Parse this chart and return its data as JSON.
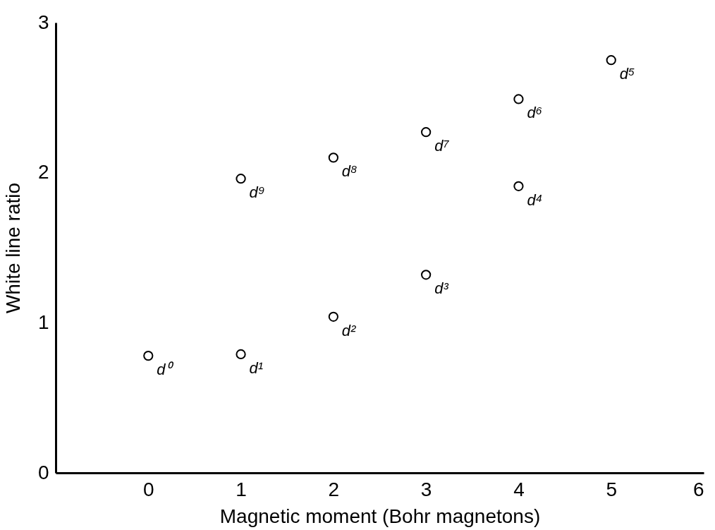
{
  "chart_data": {
    "type": "scatter",
    "xlabel": "Magnetic moment (Bohr magnetons)",
    "ylabel": "White line ratio",
    "x": [
      0,
      1,
      2,
      3,
      4,
      5,
      4,
      3,
      2,
      1
    ],
    "series": [
      {
        "color": "#000000",
        "values": [
          0.78,
          0.79,
          1.04,
          1.32,
          1.91,
          2.75,
          2.49,
          2.27,
          2.1,
          1.96
        ]
      }
    ],
    "marker": "circle",
    "grid": false,
    "xlim": [
      -1,
      6
    ],
    "xticks": [
      0,
      1,
      2,
      3,
      4,
      5,
      6
    ],
    "ylim": [
      0,
      3
    ],
    "yticks": [
      0,
      1,
      2,
      3
    ],
    "annotations": [
      {
        "text": "d⁰",
        "x": 0,
        "y": 0.78
      },
      {
        "text": "d¹",
        "x": 1,
        "y": 0.79
      },
      {
        "text": "d²",
        "x": 2,
        "y": 1.04
      },
      {
        "text": "d³",
        "x": 3,
        "y": 1.32
      },
      {
        "text": "d⁴",
        "x": 4,
        "y": 1.91
      },
      {
        "text": "d⁵",
        "x": 5,
        "y": 2.75
      },
      {
        "text": "d⁶",
        "x": 4,
        "y": 2.49
      },
      {
        "text": "d⁷",
        "x": 3,
        "y": 2.27
      },
      {
        "text": "d⁸",
        "x": 2,
        "y": 2.1
      },
      {
        "text": "d⁹",
        "x": 1,
        "y": 1.96
      }
    ]
  }
}
